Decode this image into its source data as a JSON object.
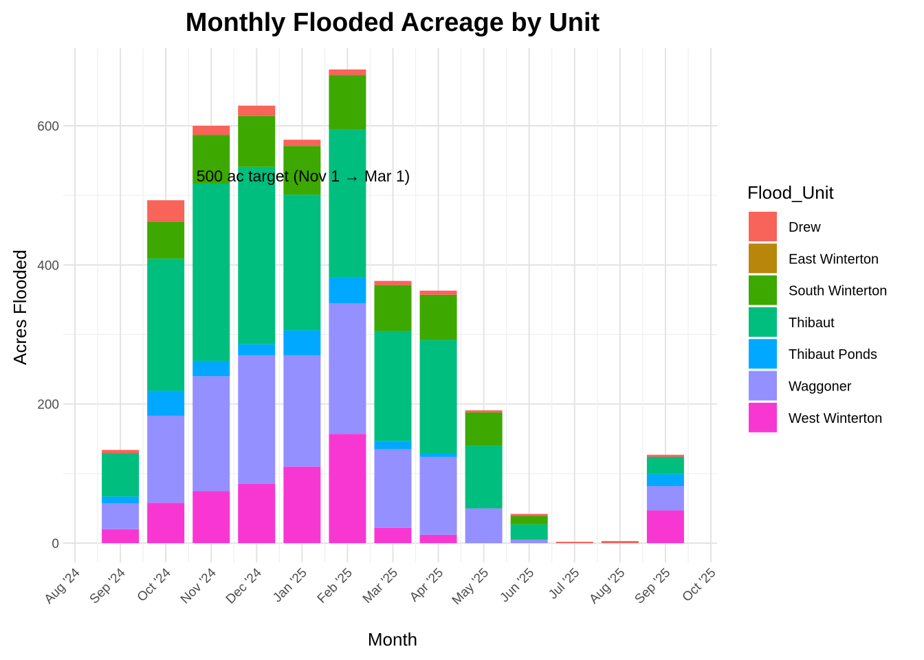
{
  "chart_data": {
    "type": "bar",
    "stacked": true,
    "title": "Monthly Flooded Acreage by Unit",
    "xlabel": "Month",
    "ylabel": "Acres Flooded",
    "legend_title": "Flood_Unit",
    "legend_position": "right",
    "grid": true,
    "annotation": "500 ac target (Nov 1 → Mar 1)",
    "x_ticks": [
      "Aug '24",
      "Sep '24",
      "Oct '24",
      "Nov '24",
      "Dec '24",
      "Jan '25",
      "Feb '25",
      "Mar '25",
      "Apr '25",
      "May '25",
      "Jun '25",
      "Jul '25",
      "Aug '25",
      "Sep '25",
      "Oct '25"
    ],
    "y_ticks": [
      0,
      200,
      400,
      600
    ],
    "ylim": [
      -28,
      705
    ],
    "categories": [
      "2024-09",
      "2024-10",
      "2024-11",
      "2024-12",
      "2025-01",
      "2025-02",
      "2025-03",
      "2025-04",
      "2025-05",
      "2025-06",
      "2025-07",
      "2025-08",
      "2025-09"
    ],
    "series": [
      {
        "name": "West Winterton",
        "color": "#F8/37D3",
        "values": [
          20,
          58,
          75,
          85,
          110,
          157,
          22,
          12,
          0,
          0,
          0,
          0,
          47
        ]
      },
      {
        "name": "Waggoner",
        "color": "#9590FF",
        "values": [
          37,
          125,
          165,
          185,
          160,
          188,
          113,
          112,
          50,
          5,
          0,
          0,
          35
        ]
      },
      {
        "name": "Thibaut Ponds",
        "color": "#00A9FF",
        "values": [
          10,
          36,
          22,
          16,
          36,
          37,
          12,
          5,
          0,
          0,
          0,
          0,
          17
        ]
      },
      {
        "name": "Thibaut",
        "color": "#00BE7D",
        "values": [
          62,
          190,
          255,
          255,
          195,
          213,
          158,
          163,
          90,
          22,
          0,
          0,
          25
        ]
      },
      {
        "name": "South Winterton",
        "color": "#3DA800",
        "values": [
          0,
          53,
          70,
          73,
          70,
          78,
          66,
          65,
          48,
          12,
          0,
          0,
          0
        ]
      },
      {
        "name": "East Winterton",
        "color": "#B8860B",
        "values": [
          0,
          0,
          0,
          0,
          0,
          0,
          0,
          0,
          0,
          0,
          0,
          0,
          0
        ]
      },
      {
        "name": "Drew",
        "color": "#F8635A",
        "values": [
          5,
          31,
          13,
          15,
          9,
          8,
          6,
          6,
          3,
          3,
          2,
          3,
          3
        ]
      }
    ]
  }
}
